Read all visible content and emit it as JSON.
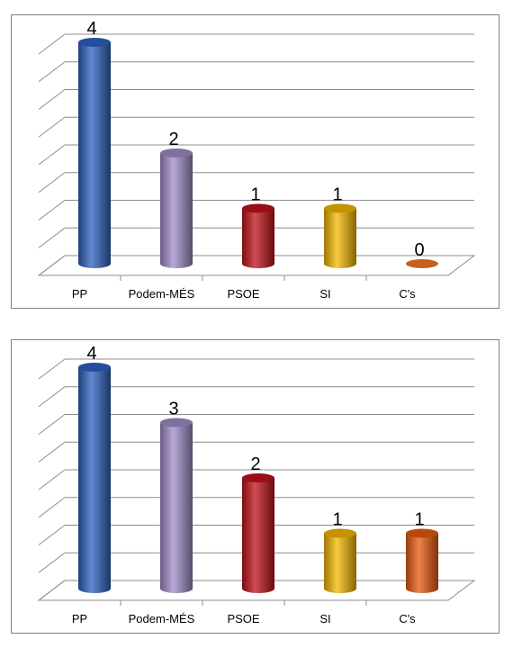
{
  "chart_data": [
    {
      "type": "bar",
      "style": "3d-cylinder",
      "title": "",
      "xlabel": "",
      "ylabel": "",
      "categories": [
        "PP",
        "Podem-MÉS",
        "PSOE",
        "SI",
        "C's"
      ],
      "values": [
        4,
        2,
        1,
        1,
        0
      ],
      "data_labels": [
        "4",
        "2",
        "1",
        "1",
        "0"
      ],
      "colors": [
        "#2e62c0",
        "#a08cc8",
        "#c0121a",
        "#f5b800",
        "#d0651e"
      ],
      "ylim": [
        0,
        4
      ],
      "grid": true,
      "legend": "none"
    },
    {
      "type": "bar",
      "style": "3d-cylinder",
      "title": "",
      "xlabel": "",
      "ylabel": "",
      "categories": [
        "PP",
        "Podem-MÉS",
        "PSOE",
        "SI",
        "C's"
      ],
      "values": [
        4,
        3,
        2,
        1,
        1
      ],
      "data_labels": [
        "4",
        "3",
        "2",
        "1",
        "1"
      ],
      "colors": [
        "#2e62c0",
        "#a08cc8",
        "#c0121a",
        "#f5b800",
        "#e85a10"
      ],
      "ylim": [
        0,
        4
      ],
      "grid": true,
      "legend": "none"
    }
  ]
}
